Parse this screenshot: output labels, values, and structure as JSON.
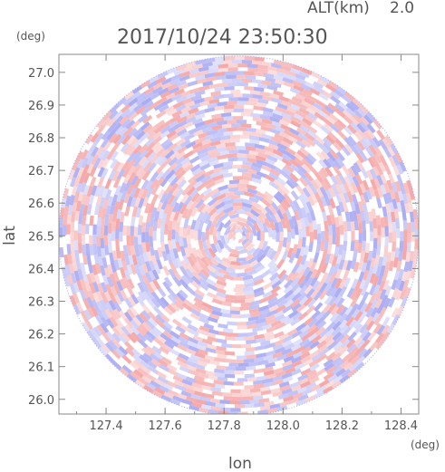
{
  "header": {
    "alt_label": "ALT(km)",
    "alt_value": "2.0",
    "timestamp": "2017/10/24 23:50:30"
  },
  "chart_data": {
    "type": "heatmap",
    "title": "2017/10/24 23:50:30",
    "xlabel": "lon",
    "ylabel": "lat",
    "x_unit": "(deg)",
    "y_unit": "(deg)",
    "xlim": [
      127.24,
      128.46
    ],
    "ylim": [
      25.955,
      27.055
    ],
    "x_ticks": [
      "127.4",
      "127.6",
      "127.8",
      "128.0",
      "128.2",
      "128.4"
    ],
    "x_tick_values": [
      127.4,
      127.6,
      127.8,
      128.0,
      128.2,
      128.4
    ],
    "y_ticks": [
      "27.0",
      "26.9",
      "26.8",
      "26.7",
      "26.6",
      "26.5",
      "26.4",
      "26.3",
      "26.2",
      "26.1",
      "26.0"
    ],
    "y_tick_values": [
      27.0,
      26.9,
      26.8,
      26.7,
      26.6,
      26.5,
      26.4,
      26.3,
      26.2,
      26.1,
      26.0
    ],
    "scan_center": [
      127.85,
      26.5
    ],
    "scan_radius_deg_lat": 0.55,
    "colors": {
      "positive": "#f4a3a3",
      "negative": "#a7a9f2",
      "axis": "#888888",
      "text": "#555555"
    }
  }
}
